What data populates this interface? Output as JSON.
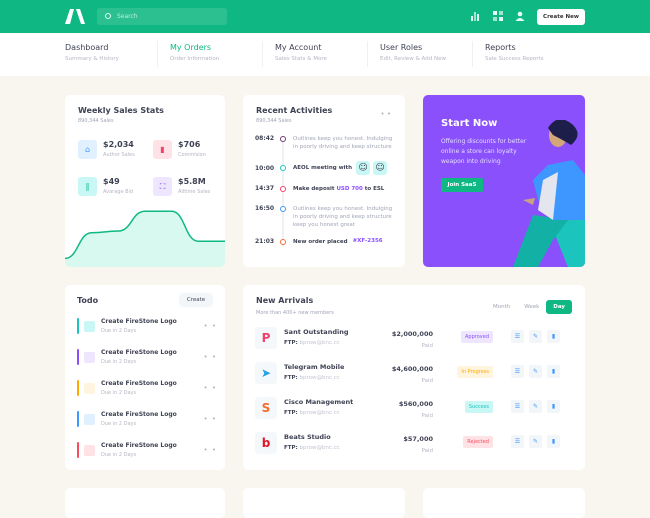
{
  "header": {
    "search_placeholder": "Search",
    "create_label": "Create New",
    "brand_color": "#0fb882",
    "icons": [
      "chart-bar-icon",
      "grid-icon",
      "user-icon"
    ]
  },
  "nav": [
    {
      "title": "Dashboard",
      "sub": "Summary & History"
    },
    {
      "title": "My Orders",
      "sub": "Order Information",
      "active": true
    },
    {
      "title": "My Account",
      "sub": "Sales Stats & More"
    },
    {
      "title": "User Roles",
      "sub": "Edit, Review & Add New"
    },
    {
      "title": "Reports",
      "sub": "Sale Success Reports"
    }
  ],
  "weekly": {
    "title": "Weekly Sales Stats",
    "sub": "890,344 Sales",
    "stats": [
      {
        "value": "$2,034",
        "label": "Author Sales",
        "icon": "basket-icon",
        "color": "#3e97ff"
      },
      {
        "value": "$706",
        "label": "Commision",
        "icon": "chart-icon",
        "color": "#f1416c"
      },
      {
        "value": "$49",
        "label": "Avarage Bid",
        "icon": "books-icon",
        "color": "#0fb882"
      },
      {
        "value": "$5.8M",
        "label": "Alltime Sales",
        "icon": "expand-icon",
        "color": "#7239ea"
      }
    ],
    "sparkline": [
      10,
      40,
      42,
      65,
      65,
      30,
      30
    ]
  },
  "activities": {
    "title": "Recent Activities",
    "sub": "890,344 Sales",
    "items": [
      {
        "time": "08:42",
        "text": "Outlines keep you honest. Indulging in poorly driving and keep structure",
        "color": "#6d3a6f"
      },
      {
        "time": "10:00",
        "text": "AEOL meeting with",
        "color": "#1bc5bd"
      },
      {
        "time": "14:37",
        "text": "Make deposit ",
        "link": "USD 700",
        "after": " to ESL",
        "color": "#f1416c"
      },
      {
        "time": "16:50",
        "text": "Outlines keep you honest. Indulging in poorly driving and keep structure keep you honest great",
        "color": "#3e97ff"
      },
      {
        "time": "21:03",
        "text": "New order placed",
        "link": "#XF-2356",
        "color": "#f66a2f"
      }
    ]
  },
  "promo": {
    "title": "Start Now",
    "text": "Offering discounts for better online a store can loyalty weapon into driving",
    "button": "Join SaaS",
    "color": "#8950fc"
  },
  "todo": {
    "title": "Todo",
    "create": "Create",
    "items": [
      {
        "title": "Create FireStone Logo",
        "due": "Due in 2 Days",
        "color": "#1bc5bd",
        "bg": "#c9f7f5"
      },
      {
        "title": "Create FireStone Logo",
        "due": "Due in 2 Days",
        "color": "#8950fc",
        "bg": "#eee5ff"
      },
      {
        "title": "Create FireStone Logo",
        "due": "Due in 2 Days",
        "color": "#ffa800",
        "bg": "#fff4de"
      },
      {
        "title": "Create FireStone Logo",
        "due": "Due in 2 Days",
        "color": "#3e97ff",
        "bg": "#e1f0ff"
      },
      {
        "title": "Create FireStone Logo",
        "due": "Due in 2 Days",
        "color": "#f64e60",
        "bg": "#ffe2e5"
      }
    ]
  },
  "arrivals": {
    "title": "New Arrivals",
    "sub": "More than 400+ new members",
    "tabs": [
      "Month",
      "Week",
      "Day"
    ],
    "ftp_label": "FTP:",
    "rows": [
      {
        "name": "Sant Outstanding",
        "email": "bprow@bnc.cc",
        "amount": "$2,000,000",
        "paid": "Paid",
        "status": "Approved",
        "sc": "#8950fc",
        "sb": "#eee5ff",
        "logo": "P",
        "lc": "#f1416c"
      },
      {
        "name": "Telegram Mobile",
        "email": "bprow@bnc.cc",
        "amount": "$4,600,000",
        "paid": "Paid",
        "status": "In Progress",
        "sc": "#ffa800",
        "sb": "#fff4de",
        "logo": "➤",
        "lc": "#1ea2e8"
      },
      {
        "name": "Cisco Management",
        "email": "bprow@bnc.cc",
        "amount": "$560,000",
        "paid": "Paid",
        "status": "Success",
        "sc": "#1bc5bd",
        "sb": "#c9f7f5",
        "logo": "S",
        "lc": "#f66a2f"
      },
      {
        "name": "Beats Studio",
        "email": "bprow@bnc.cc",
        "amount": "$57,000",
        "paid": "Paid",
        "status": "Rejected",
        "sc": "#f64e60",
        "sb": "#ffe2e5",
        "logo": "b",
        "lc": "#e2172b"
      }
    ]
  }
}
